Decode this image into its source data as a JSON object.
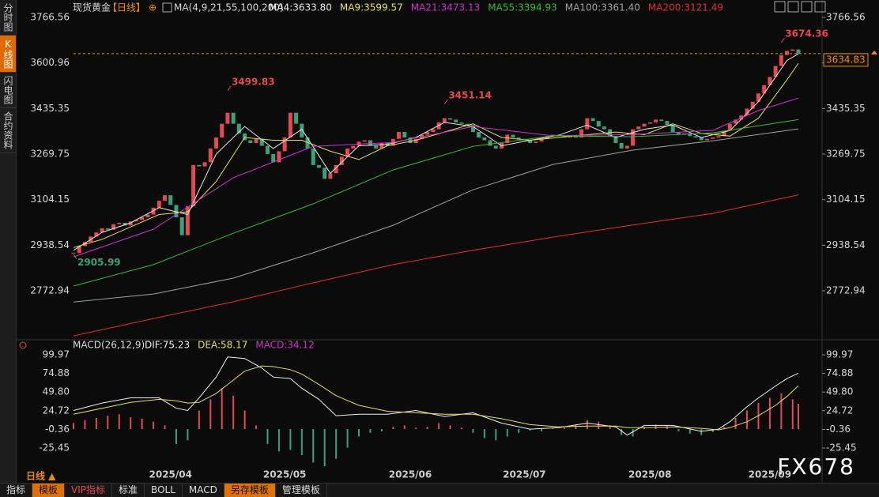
{
  "sidebar": [
    "分时图",
    "K线图",
    "闪电图",
    "合约资料"
  ],
  "toolbar": {
    "period": "日线 ▲",
    "tabs": [
      "指标",
      "模板",
      "VIP指标",
      "标准",
      "BOLL",
      "MACD",
      "另存模板",
      "管理模板"
    ]
  },
  "watermark": "FX678",
  "chart_data": [
    {
      "type": "candlestick",
      "title": "现货黄金",
      "period": "【日线】",
      "indicator": "MA(4,9,21,55,100,200)",
      "up_color": "#e5484d",
      "down_color": "#35a37b",
      "last": 3634.83,
      "last_color": "#f08c00",
      "values": [
        2910,
        2935,
        2950,
        2970,
        2985,
        3000,
        2995,
        3015,
        3020,
        3010,
        3025,
        3030,
        3040,
        3050,
        3075,
        3100,
        3120,
        3085,
        3040,
        2975,
        3080,
        3230,
        3225,
        3240,
        3290,
        3330,
        3380,
        3420,
        3380,
        3345,
        3320,
        3310,
        3325,
        3300,
        3270,
        3240,
        3280,
        3330,
        3420,
        3380,
        3330,
        3290,
        3230,
        3220,
        3180,
        3200,
        3230,
        3260,
        3290,
        3300,
        3315,
        3320,
        3300,
        3290,
        3310,
        3300,
        3325,
        3350,
        3330,
        3310,
        3325,
        3340,
        3350,
        3360,
        3385,
        3400,
        3395,
        3385,
        3380,
        3375,
        3350,
        3330,
        3320,
        3300,
        3290,
        3310,
        3340,
        3330,
        3325,
        3320,
        3310,
        3315,
        3325,
        3335,
        3340,
        3335,
        3330,
        3335,
        3330,
        3360,
        3400,
        3390,
        3370,
        3360,
        3335,
        3310,
        3290,
        3300,
        3360,
        3370,
        3380,
        3385,
        3395,
        3390,
        3375,
        3350,
        3340,
        3345,
        3335,
        3330,
        3320,
        3325,
        3330,
        3335,
        3355,
        3380,
        3395,
        3410,
        3435,
        3460,
        3490,
        3520,
        3550,
        3590,
        3630,
        3645,
        3650,
        3634.83
      ],
      "annotations": [
        {
          "x": 124,
          "y": 3674.36,
          "label": "3674.36",
          "color": "#e5484d"
        },
        {
          "x": 27,
          "y": 3499.83,
          "label": "3499.83",
          "color": "#e5484d"
        },
        {
          "x": 65,
          "y": 3451.14,
          "label": "3451.14",
          "color": "#e5484d"
        },
        {
          "x": 0,
          "y": 2905.99,
          "label": "2905.99",
          "color": "#35a37b"
        }
      ],
      "ylim": [
        2600.6,
        3766.56
      ],
      "yticks": [
        3766.56,
        3600.96,
        3435.35,
        3269.75,
        3104.15,
        2938.54,
        2772.94
      ],
      "series": [
        {
          "name": "MA4:3633.80",
          "color": "#e8e8e8",
          "x": [
            0,
            5,
            10,
            15,
            20,
            25,
            30,
            35,
            40,
            45,
            50,
            55,
            60,
            65,
            70,
            75,
            80,
            85,
            90,
            95,
            100,
            105,
            110,
            115,
            120,
            125,
            127
          ],
          "values": [
            2920,
            2985,
            3020,
            3075,
            3050,
            3270,
            3370,
            3290,
            3360,
            3200,
            3300,
            3305,
            3330,
            3385,
            3370,
            3300,
            3320,
            3338,
            3375,
            3330,
            3360,
            3375,
            3330,
            3355,
            3460,
            3610,
            3633.8
          ]
        },
        {
          "name": "MA9:3599.57",
          "color": "#e8e050",
          "x": [
            0,
            5,
            10,
            15,
            20,
            25,
            30,
            35,
            40,
            45,
            50,
            55,
            60,
            65,
            70,
            75,
            80,
            85,
            90,
            95,
            100,
            105,
            110,
            115,
            120,
            125,
            127
          ],
          "values": [
            2930,
            2960,
            3005,
            3050,
            3060,
            3170,
            3330,
            3320,
            3320,
            3280,
            3250,
            3300,
            3320,
            3350,
            3380,
            3330,
            3320,
            3330,
            3340,
            3350,
            3340,
            3380,
            3345,
            3335,
            3400,
            3540,
            3599.57
          ]
        },
        {
          "name": "MA21:3473.13",
          "color": "#d030d0",
          "x": [
            0,
            14,
            28,
            42,
            56,
            70,
            84,
            98,
            112,
            120,
            127
          ],
          "values": [
            2896,
            2997,
            3184,
            3298,
            3312,
            3370,
            3336,
            3341,
            3356,
            3428,
            3473.13
          ]
        },
        {
          "name": "MA55:3394.93",
          "color": "#30c030",
          "x": [
            0,
            14,
            28,
            42,
            56,
            70,
            84,
            98,
            112,
            127
          ],
          "values": [
            2790,
            2868,
            2982,
            3089,
            3212,
            3298,
            3336,
            3333,
            3347,
            3394.93
          ]
        },
        {
          "name": "MA100:3361.40",
          "color": "#a0a0a0",
          "x": [
            0,
            14,
            28,
            42,
            56,
            70,
            84,
            98,
            112,
            127
          ],
          "values": [
            2732,
            2761,
            2819,
            2911,
            3011,
            3140,
            3232,
            3284,
            3318,
            3361.4
          ]
        },
        {
          "name": "MA200:3121.49",
          "color": "#e03030",
          "x": [
            0,
            14,
            28,
            42,
            56,
            70,
            84,
            98,
            112,
            127
          ],
          "values": [
            2609,
            2672,
            2733,
            2802,
            2868,
            2920,
            2968,
            3012,
            3054,
            3121.49
          ]
        }
      ]
    },
    {
      "type": "macd",
      "indicator": "MACD(26,12,9)",
      "ylim": [
        -55.2,
        99.97
      ],
      "yticks": [
        99.97,
        74.88,
        {
          "value": 49.8,
          "label": "49.80"
        },
        24.72,
        -0.36,
        -25.45
      ],
      "xticks": [
        {
          "value": 17,
          "label": "2025/04"
        },
        {
          "value": 37,
          "label": "2025/05"
        },
        {
          "value": 59,
          "label": "2025/06"
        },
        {
          "value": 79,
          "label": "2025/07"
        },
        {
          "value": 101,
          "label": "2025/08"
        },
        {
          "value": 122,
          "label": "2025/09"
        }
      ],
      "series": [
        {
          "name": "DIF:75.23",
          "color": "#f0f0f0",
          "x": [
            0,
            5,
            10,
            15,
            18,
            20,
            22,
            25,
            27,
            30,
            33,
            35,
            38,
            40,
            43,
            46,
            50,
            55,
            60,
            65,
            70,
            75,
            80,
            85,
            90,
            95,
            97,
            100,
            105,
            110,
            113,
            115,
            118,
            120,
            123,
            125,
            127
          ],
          "values": [
            25,
            35,
            42,
            42,
            28,
            25,
            42,
            70,
            97,
            95,
            82,
            70,
            68,
            55,
            40,
            18,
            20,
            20,
            25,
            17,
            22,
            8,
            0,
            2,
            8,
            3,
            -8,
            5,
            5,
            -3,
            0,
            10,
            30,
            42,
            58,
            68,
            75.23
          ]
        },
        {
          "name": "DEA:58.17",
          "color": "#e8e050",
          "x": [
            0,
            5,
            10,
            15,
            18,
            20,
            22,
            25,
            27,
            30,
            33,
            35,
            38,
            40,
            43,
            46,
            50,
            55,
            60,
            65,
            70,
            75,
            80,
            85,
            90,
            95,
            97,
            100,
            105,
            110,
            113,
            115,
            118,
            120,
            123,
            125,
            127
          ],
          "values": [
            20,
            28,
            36,
            40,
            38,
            35,
            36,
            48,
            60,
            78,
            85,
            84,
            80,
            74,
            60,
            45,
            32,
            24,
            22,
            20,
            20,
            14,
            6,
            3,
            4,
            4,
            2,
            2,
            3,
            1,
            -1,
            2,
            10,
            18,
            32,
            44,
            58.17
          ]
        }
      ],
      "histogram": {
        "name": "MACD:34.12",
        "color": "#d030d0",
        "up_color": "#e5484d",
        "down_color": "#35a37b",
        "x": [
          0,
          2,
          4,
          6,
          8,
          10,
          12,
          14,
          16,
          18,
          20,
          22,
          24,
          26,
          28,
          30,
          32,
          34,
          36,
          38,
          40,
          42,
          44,
          46,
          48,
          50,
          52,
          54,
          56,
          58,
          60,
          62,
          64,
          66,
          68,
          70,
          72,
          74,
          76,
          78,
          80,
          82,
          84,
          86,
          88,
          90,
          92,
          94,
          96,
          98,
          100,
          102,
          104,
          106,
          108,
          110,
          112,
          114,
          116,
          118,
          120,
          122,
          124,
          126,
          127
        ],
        "values": [
          8,
          12,
          15,
          18,
          20,
          16,
          14,
          10,
          5,
          -20,
          -15,
          25,
          40,
          55,
          45,
          25,
          5,
          -20,
          -30,
          -28,
          -35,
          -45,
          -50,
          -40,
          -25,
          -10,
          -5,
          -3,
          3,
          5,
          2,
          3,
          8,
          5,
          2,
          -5,
          -12,
          -15,
          -10,
          -5,
          -2,
          -3,
          1,
          2,
          6,
          12,
          10,
          5,
          -8,
          -10,
          3,
          6,
          4,
          -3,
          -6,
          -8,
          -4,
          3,
          15,
          25,
          35,
          42,
          48,
          40,
          34.12
        ]
      }
    }
  ]
}
